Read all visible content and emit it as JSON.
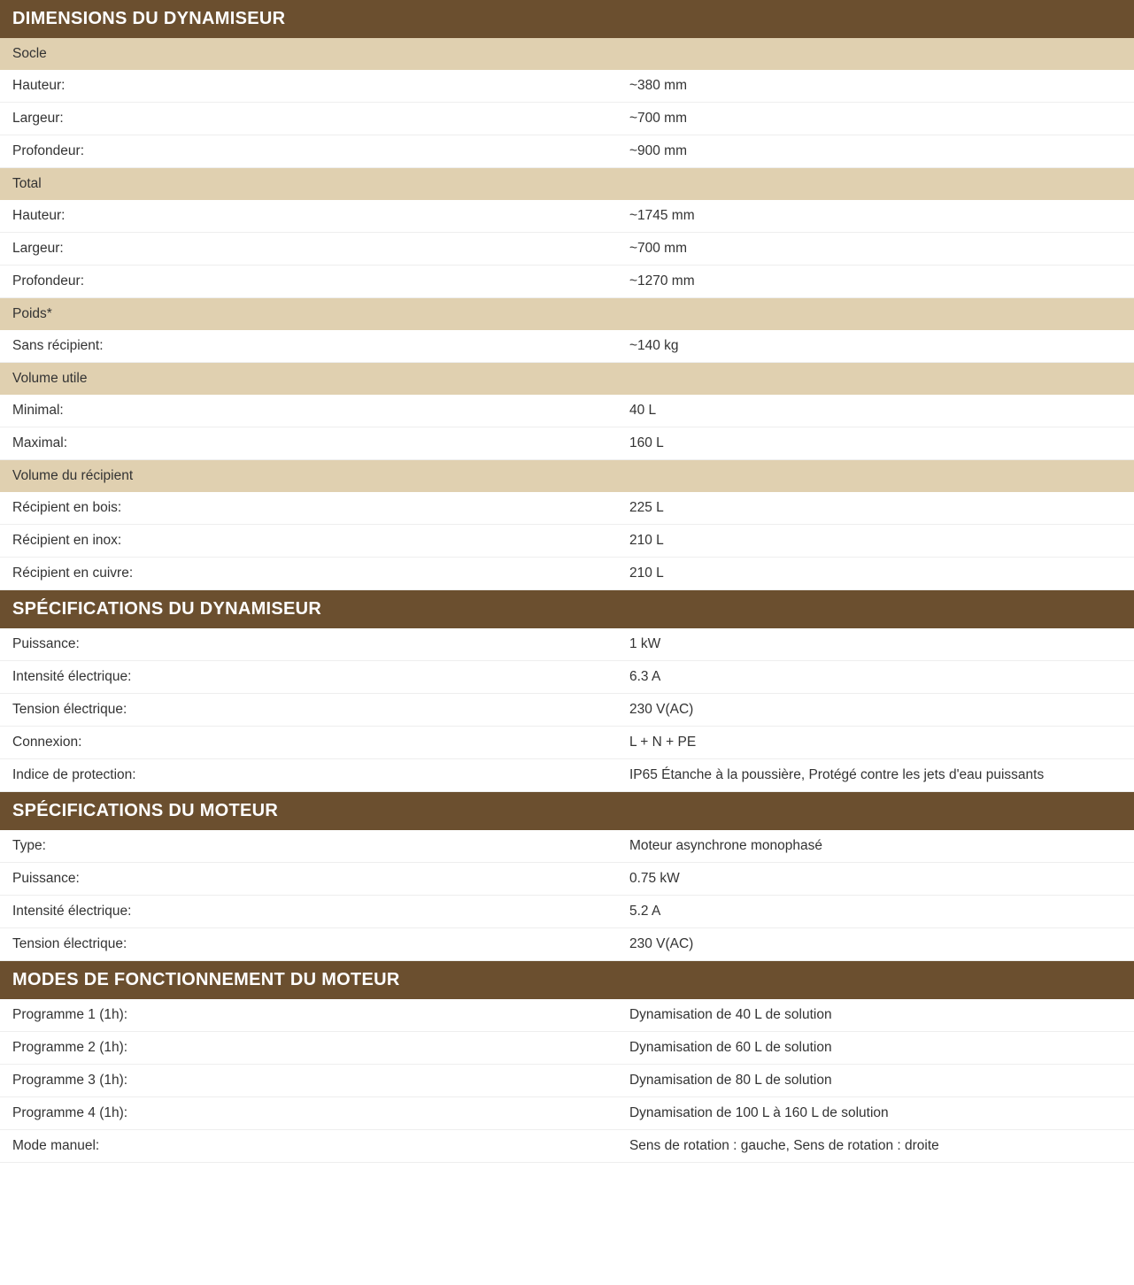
{
  "colors": {
    "header_bg": "#6b4f2f",
    "header_fg": "#ffffff",
    "subheader_bg": "#e0d0b0",
    "text": "#333333",
    "row_border": "#eeeeee"
  },
  "sections": {
    "dimensions": {
      "title": "DIMENSIONS DU DYNAMISEUR",
      "groups": {
        "socle": {
          "label": "Socle",
          "rows": [
            {
              "label": "Hauteur:",
              "value": "~380 mm"
            },
            {
              "label": "Largeur:",
              "value": "~700 mm"
            },
            {
              "label": "Profondeur:",
              "value": "~900 mm"
            }
          ]
        },
        "total": {
          "label": "Total",
          "rows": [
            {
              "label": "Hauteur:",
              "value": "~1745 mm"
            },
            {
              "label": "Largeur:",
              "value": "~700 mm"
            },
            {
              "label": "Profondeur:",
              "value": "~1270 mm"
            }
          ]
        },
        "poids": {
          "label": "Poids*",
          "rows": [
            {
              "label": "Sans récipient:",
              "value": "~140 kg"
            }
          ]
        },
        "volume_utile": {
          "label": "Volume utile",
          "rows": [
            {
              "label": "Minimal:",
              "value": "40 L"
            },
            {
              "label": "Maximal:",
              "value": "160 L"
            }
          ]
        },
        "volume_recipient": {
          "label": "Volume du récipient",
          "rows": [
            {
              "label": "Récipient en bois:",
              "value": "225 L"
            },
            {
              "label": "Récipient en inox:",
              "value": "210 L"
            },
            {
              "label": "Récipient en cuivre:",
              "value": "210 L"
            }
          ]
        }
      }
    },
    "specs_dynamiseur": {
      "title": "SPÉCIFICATIONS DU DYNAMISEUR",
      "rows": [
        {
          "label": "Puissance:",
          "value": "1 kW"
        },
        {
          "label": "Intensité électrique:",
          "value": "6.3 A"
        },
        {
          "label": "Tension électrique:",
          "value": "230 V(AC)"
        },
        {
          "label": "Connexion:",
          "value": "L + N + PE"
        },
        {
          "label": "Indice de protection:",
          "value": "IP65 Étanche à la poussière, Protégé contre les jets d'eau puissants"
        }
      ]
    },
    "specs_moteur": {
      "title": "SPÉCIFICATIONS DU MOTEUR",
      "rows": [
        {
          "label": "Type:",
          "value": "Moteur asynchrone monophasé"
        },
        {
          "label": "Puissance:",
          "value": "0.75 kW"
        },
        {
          "label": "Intensité électrique:",
          "value": "5.2 A"
        },
        {
          "label": "Tension électrique:",
          "value": "230 V(AC)"
        }
      ]
    },
    "modes": {
      "title": "MODES DE FONCTIONNEMENT DU MOTEUR",
      "rows": [
        {
          "label": "Programme 1 (1h):",
          "value": "Dynamisation de 40 L de solution"
        },
        {
          "label": "Programme 2 (1h):",
          "value": "Dynamisation de 60 L de solution"
        },
        {
          "label": "Programme 3 (1h):",
          "value": "Dynamisation de 80 L de solution"
        },
        {
          "label": "Programme 4 (1h):",
          "value": "Dynamisation de 100 L à 160 L de solution"
        },
        {
          "label": "Mode manuel:",
          "value": "Sens de rotation : gauche, Sens de rotation : droite"
        }
      ]
    }
  }
}
